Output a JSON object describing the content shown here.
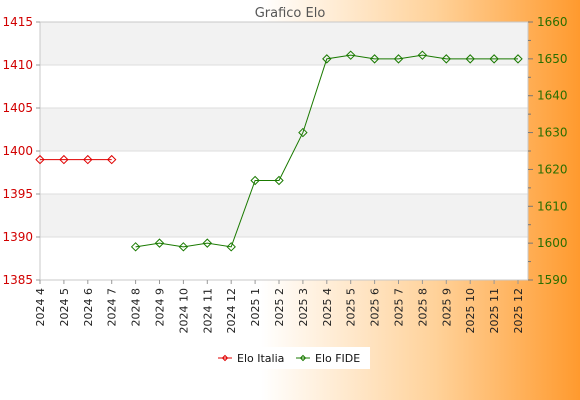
{
  "chart_data": {
    "type": "line",
    "title": "Grafico Elo",
    "categories": [
      "2024 4",
      "2024 5",
      "2024 6",
      "2024 7",
      "2024 8",
      "2024 9",
      "2024 10",
      "2024 11",
      "2024 12",
      "2025 1",
      "2025 2",
      "2025 3",
      "2025 4",
      "2025 5",
      "2025 6",
      "2025 7",
      "2025 8",
      "2025 9",
      "2025 10",
      "2025 11",
      "2025 12"
    ],
    "axes": {
      "left": {
        "min": 1385,
        "max": 1415,
        "ticks": [
          1385,
          1390,
          1395,
          1400,
          1405,
          1410,
          1415
        ],
        "color": "#d10000"
      },
      "right": {
        "min": 1590,
        "max": 1660,
        "ticks": [
          1590,
          1600,
          1610,
          1620,
          1630,
          1640,
          1650,
          1660
        ],
        "color": "#2a6e00"
      }
    },
    "series": [
      {
        "name": "Elo Italia",
        "axis": "left",
        "color": "#e00000",
        "values": [
          1399,
          1399,
          1399,
          1399,
          null,
          null,
          null,
          null,
          null,
          null,
          null,
          null,
          null,
          null,
          null,
          null,
          null,
          null,
          null,
          null,
          null
        ]
      },
      {
        "name": "Elo FIDE",
        "axis": "right",
        "color": "#1a7a00",
        "values": [
          null,
          null,
          null,
          null,
          1599,
          1600,
          1599,
          1600,
          1599,
          1617,
          1617,
          1630,
          1650,
          1651,
          1650,
          1650,
          1651,
          1650,
          1650,
          1650,
          1650
        ]
      }
    ],
    "legend": "bottom-center",
    "grid": true
  }
}
